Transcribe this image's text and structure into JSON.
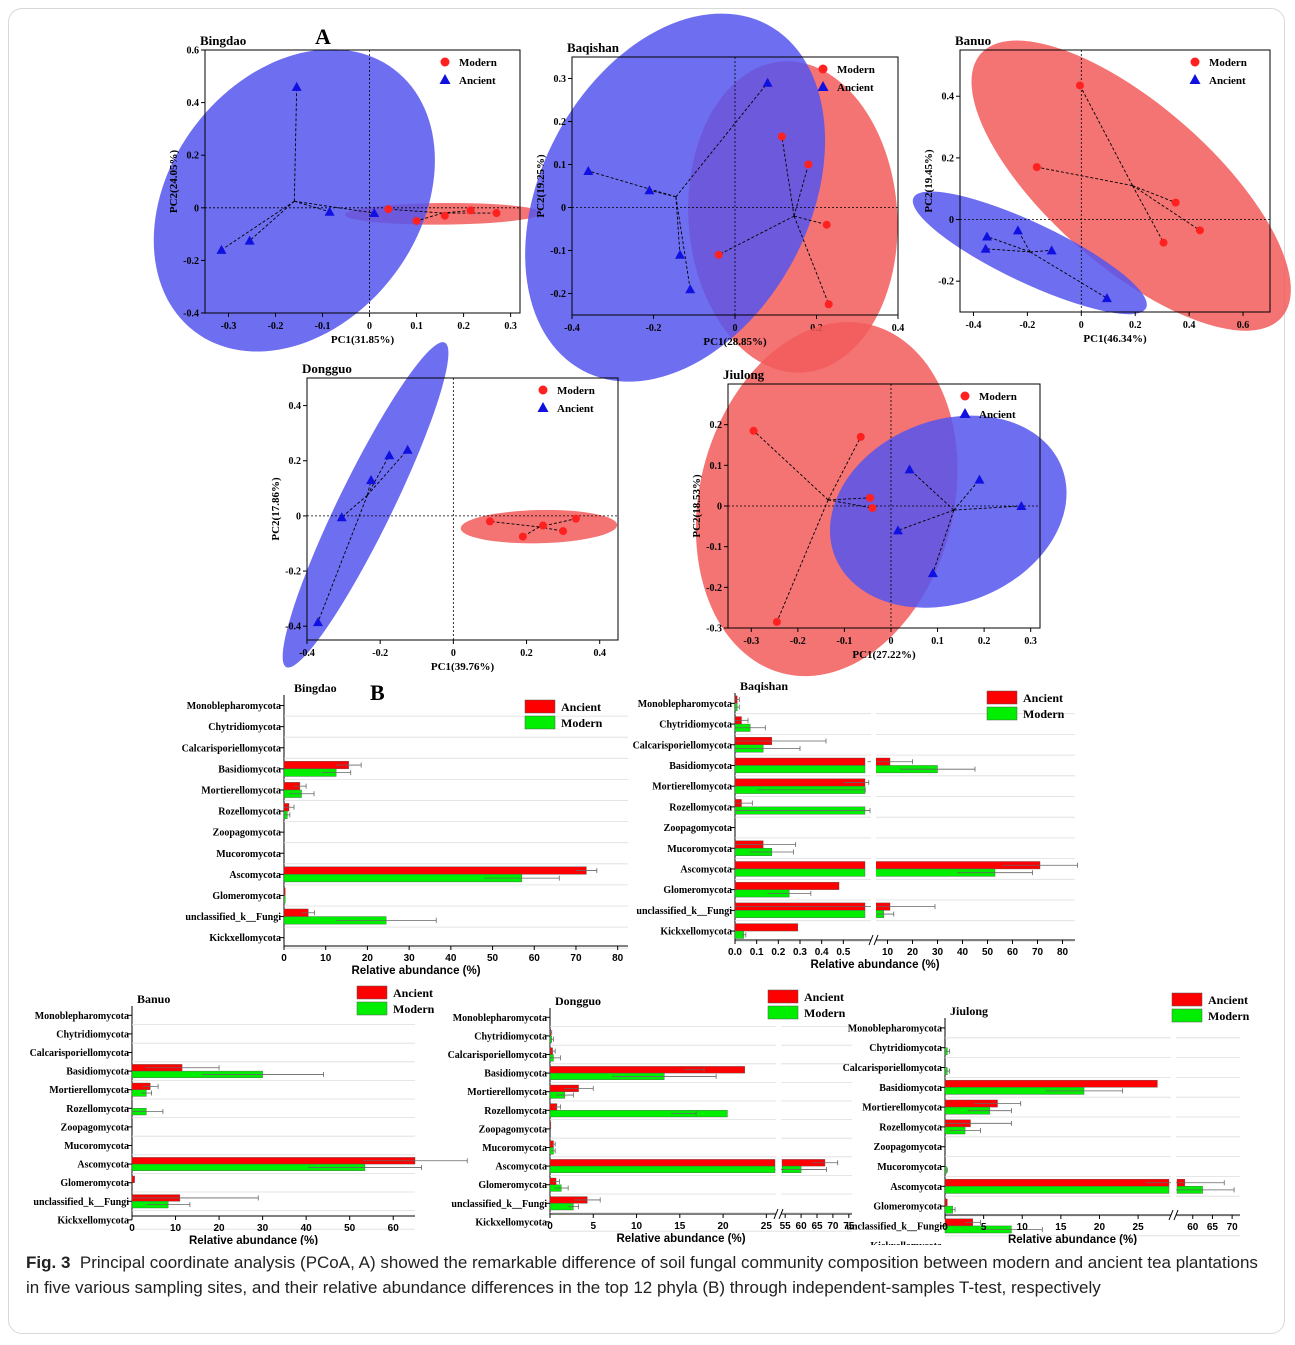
{
  "figure": {
    "label_a": "A",
    "label_b": "B",
    "caption_label": "Fig. 3",
    "caption_text": "Principal coordinate analysis (PCoA, A) showed the remarkable difference of soil fungal community composition between modern and ancient tea plantations in five various sampling sites, and their relative abundance differences in the top 12 phyla (B) through independent-samples T-test, respectively"
  },
  "colors": {
    "modern": "#ff2020",
    "ancient": "#1010e0",
    "modern_fill": "#f25a5a",
    "ancient_fill": "#5555ee",
    "bar_ancient": "#ff0000",
    "bar_modern": "#00ee00"
  },
  "phyla": [
    "Monoblepharomycota",
    "Chytridiomycota",
    "Calcarisporiellomycota",
    "Basidiomycota",
    "Mortierellomycota",
    "Rozellomycota",
    "Zoopagomycota",
    "Mucoromycota",
    "Ascomycota",
    "Glomeromycota",
    "unclassified_k__Fungi",
    "Kickxellomycota"
  ],
  "chart_data": [
    {
      "type": "scatter",
      "title": "Bingdao",
      "xlabel": "PC1(31.85%)",
      "ylabel": "PC2(24.05%)",
      "xlim": [
        -0.35,
        0.32
      ],
      "ylim": [
        -0.4,
        0.6
      ],
      "xticks": [
        "-0.3",
        "-0.2",
        "-0.1",
        "0",
        "0.1",
        "0.2",
        "0.3"
      ],
      "yticks": [
        "-0.4",
        "-0.2",
        "0",
        "0.2",
        "0.4",
        "0.6"
      ],
      "legend": [
        "Modern",
        "Ancient"
      ],
      "series": [
        {
          "name": "Modern",
          "points": [
            [
              0.04,
              -0.005
            ],
            [
              0.1,
              -0.05
            ],
            [
              0.16,
              -0.03
            ],
            [
              0.215,
              -0.01
            ],
            [
              0.27,
              -0.02
            ]
          ],
          "centroid": [
            0.155,
            -0.02
          ]
        },
        {
          "name": "Ancient",
          "points": [
            [
              -0.155,
              0.46
            ],
            [
              -0.315,
              -0.16
            ],
            [
              -0.255,
              -0.125
            ],
            [
              -0.085,
              -0.015
            ],
            [
              0.01,
              -0.02
            ]
          ],
          "centroid": [
            -0.16,
            0.025
          ]
        }
      ]
    },
    {
      "type": "scatter",
      "title": "Baqishan",
      "xlabel": "PC1(28.85%)",
      "ylabel": "PC2(19.25%)",
      "xlim": [
        -0.4,
        0.4
      ],
      "ylim": [
        -0.25,
        0.35
      ],
      "xticks": [
        "-0.4",
        "-0.2",
        "0",
        "0.2",
        "0.4"
      ],
      "yticks": [
        "-0.2",
        "-0.1",
        "0",
        "0.1",
        "0.2",
        "0.3"
      ],
      "legend": [
        "Modern",
        "Ancient"
      ],
      "series": [
        {
          "name": "Modern",
          "points": [
            [
              0.115,
              0.165
            ],
            [
              0.18,
              0.1
            ],
            [
              0.225,
              -0.04
            ],
            [
              0.23,
              -0.225
            ],
            [
              -0.04,
              -0.11
            ]
          ],
          "centroid": [
            0.145,
            -0.02
          ]
        },
        {
          "name": "Ancient",
          "points": [
            [
              0.08,
              0.29
            ],
            [
              -0.36,
              0.085
            ],
            [
              -0.21,
              0.04
            ],
            [
              -0.135,
              -0.11
            ],
            [
              -0.11,
              -0.19
            ]
          ],
          "centroid": [
            -0.145,
            0.025
          ]
        }
      ]
    },
    {
      "type": "scatter",
      "title": "Banuo",
      "xlabel": "PC1(46.34%)",
      "ylabel": "PC2(19.45%)",
      "xlim": [
        -0.45,
        0.7
      ],
      "ylim": [
        -0.3,
        0.55
      ],
      "xticks": [
        "-0.4",
        "-0.2",
        "0",
        "0.2",
        "0.4",
        "0.6"
      ],
      "yticks": [
        "-0.2",
        "0",
        "0.2",
        "0.4"
      ],
      "legend": [
        "Modern",
        "Ancient"
      ],
      "series": [
        {
          "name": "Modern",
          "points": [
            [
              -0.005,
              0.435
            ],
            [
              -0.165,
              0.17
            ],
            [
              0.305,
              -0.075
            ],
            [
              0.35,
              0.055
            ],
            [
              0.44,
              -0.035
            ]
          ],
          "centroid": [
            0.19,
            0.11
          ]
        },
        {
          "name": "Ancient",
          "points": [
            [
              -0.35,
              -0.055
            ],
            [
              -0.355,
              -0.095
            ],
            [
              -0.235,
              -0.035
            ],
            [
              -0.11,
              -0.1
            ],
            [
              0.095,
              -0.255
            ]
          ],
          "centroid": [
            -0.19,
            -0.105
          ]
        }
      ]
    },
    {
      "type": "scatter",
      "title": "Dongguo",
      "xlabel": "PC1(39.76%)",
      "ylabel": "PC2(17.86%)",
      "xlim": [
        -0.4,
        0.45
      ],
      "ylim": [
        -0.45,
        0.5
      ],
      "xticks": [
        "-0.4",
        "-0.2",
        "0",
        "0.2",
        "0.4"
      ],
      "yticks": [
        "-0.4",
        "-0.2",
        "0",
        "0.2",
        "0.4"
      ],
      "legend": [
        "Modern",
        "Ancient"
      ],
      "series": [
        {
          "name": "Modern",
          "points": [
            [
              0.1,
              -0.02
            ],
            [
              0.19,
              -0.075
            ],
            [
              0.245,
              -0.035
            ],
            [
              0.3,
              -0.055
            ],
            [
              0.335,
              -0.01
            ]
          ],
          "centroid": [
            0.235,
            -0.04
          ]
        },
        {
          "name": "Ancient",
          "points": [
            [
              -0.125,
              0.24
            ],
            [
              -0.175,
              0.22
            ],
            [
              -0.225,
              0.13
            ],
            [
              -0.305,
              -0.005
            ],
            [
              -0.37,
              -0.385
            ]
          ],
          "centroid": [
            -0.235,
            0.075
          ]
        }
      ]
    },
    {
      "type": "scatter",
      "title": "Jiulong",
      "xlabel": "PC1(27.22%)",
      "ylabel": "PC2(18.53%)",
      "xlim": [
        -0.35,
        0.32
      ],
      "ylim": [
        -0.3,
        0.3
      ],
      "xticks": [
        "-0.3",
        "-0.2",
        "-0.1",
        "0",
        "0.1",
        "0.2",
        "0.3"
      ],
      "yticks": [
        "-0.3",
        "-0.2",
        "-0.1",
        "0",
        "0.1",
        "0.2"
      ],
      "legend": [
        "Modern",
        "Ancient"
      ],
      "series": [
        {
          "name": "Modern",
          "points": [
            [
              -0.295,
              0.185
            ],
            [
              -0.065,
              0.17
            ],
            [
              -0.045,
              0.02
            ],
            [
              -0.04,
              -0.005
            ],
            [
              -0.245,
              -0.285
            ]
          ],
          "centroid": [
            -0.135,
            0.015
          ]
        },
        {
          "name": "Ancient",
          "points": [
            [
              0.04,
              0.09
            ],
            [
              0.19,
              0.065
            ],
            [
              0.28,
              0.0
            ],
            [
              0.015,
              -0.06
            ],
            [
              0.09,
              -0.165
            ]
          ],
          "centroid": [
            0.135,
            -0.01
          ]
        }
      ]
    },
    {
      "type": "bar",
      "title": "Bingdao",
      "xlabel": "Relative abundance (%)",
      "xticks": [
        "0",
        "10",
        "20",
        "30",
        "40",
        "50",
        "60",
        "70",
        "80"
      ],
      "legend": [
        "Ancient",
        "Modern"
      ],
      "categories": [
        "Monoblepharomycota",
        "Chytridiomycota",
        "Calcarisporiellomycota",
        "Basidiomycota",
        "Mortierellomycota",
        "Rozellomycota",
        "Zoopagomycota",
        "Mucoromycota",
        "Ascomycota",
        "Glomeromycota",
        "unclassified_k__Fungi",
        "Kickxellomycota"
      ],
      "series": [
        {
          "name": "Ancient",
          "values": [
            0,
            0,
            0,
            15.5,
            3.8,
            1.2,
            0,
            0,
            72.5,
            0.3,
            5.8,
            0
          ],
          "err": [
            0,
            0,
            0,
            3,
            1.5,
            1.2,
            0,
            0,
            2.5,
            0,
            1.5,
            0
          ]
        },
        {
          "name": "Modern",
          "values": [
            0,
            0,
            0,
            12.5,
            4.2,
            0.8,
            0,
            0,
            57,
            0.3,
            24.5,
            0
          ],
          "err": [
            0,
            0,
            0,
            3.5,
            3,
            0.6,
            0,
            0,
            9,
            0,
            12,
            0
          ]
        }
      ]
    },
    {
      "type": "bar",
      "title": "Baqishan",
      "xlabel": "Relative abundance (%)",
      "xticks": [
        "0.0",
        "0.1",
        "0.2",
        "0.3",
        "0.4",
        "0.5",
        "10",
        "20",
        "30",
        "40",
        "50",
        "60",
        "70",
        "80"
      ],
      "legend": [
        "Ancient",
        "Modern"
      ],
      "axis_break": [
        0.6,
        5
      ],
      "categories": [
        "Monoblepharomycota",
        "Chytridiomycota",
        "Calcarisporiellomycota",
        "Basidiomycota",
        "Mortierellomycota",
        "Rozellomycota",
        "Zoopagomycota",
        "Mucoromycota",
        "Ascomycota",
        "Glomeromycota",
        "unclassified_k__Fungi",
        "Kickxellomycota"
      ],
      "series": [
        {
          "name": "Ancient",
          "values": [
            0.01,
            0.03,
            0.17,
            11,
            1.5,
            0.03,
            0,
            0.13,
            71,
            0.48,
            11,
            0.29
          ],
          "err": [
            0.01,
            0.03,
            0.25,
            9,
            1,
            0.05,
            0,
            0.15,
            15,
            0,
            18,
            0
          ]
        },
        {
          "name": "Modern",
          "values": [
            0.01,
            0.07,
            0.13,
            30,
            0.6,
            1.5,
            0,
            0.17,
            53,
            0.25,
            8.5,
            0.04
          ],
          "err": [
            0.01,
            0.07,
            0.17,
            15,
            0.5,
            1.5,
            0,
            0.1,
            15,
            0.1,
            4,
            0.01
          ]
        }
      ]
    },
    {
      "type": "bar",
      "title": "Banuo",
      "xlabel": "Relative abundance (%)",
      "xticks": [
        "0",
        "10",
        "20",
        "30",
        "40",
        "50",
        "60"
      ],
      "legend": [
        "Ancient",
        "Modern"
      ],
      "categories": [
        "Monoblepharomycota",
        "Chytridiomycota",
        "Calcarisporiellomycota",
        "Basidiomycota",
        "Mortierellomycota",
        "Rozellomycota",
        "Zoopagomycota",
        "Mucoromycota",
        "Ascomycota",
        "Glomeromycota",
        "unclassified_k__Fungi",
        "Kickxellomycota"
      ],
      "series": [
        {
          "name": "Ancient",
          "values": [
            0,
            0,
            0,
            11.5,
            4.2,
            0,
            0,
            0,
            65,
            0.6,
            11,
            0
          ],
          "err": [
            0,
            0,
            0,
            8.5,
            1.8,
            0,
            0,
            0,
            12,
            0,
            18,
            0
          ]
        },
        {
          "name": "Modern",
          "values": [
            0,
            0,
            0,
            30,
            3.3,
            3.3,
            0,
            0,
            53.5,
            0,
            8.3,
            0
          ],
          "err": [
            0,
            0,
            0,
            14,
            1.2,
            3.8,
            0,
            0,
            13,
            0,
            5,
            0
          ]
        }
      ]
    },
    {
      "type": "bar",
      "title": "Dongguo",
      "xlabel": "Relative abundance (%)",
      "xticks": [
        "0",
        "5",
        "10",
        "15",
        "20",
        "25",
        "55",
        "60",
        "65",
        "70",
        "75"
      ],
      "legend": [
        "Ancient",
        "Modern"
      ],
      "axis_break": [
        26,
        54
      ],
      "categories": [
        "Monoblepharomycota",
        "Chytridiomycota",
        "Calcarisporiellomycota",
        "Basidiomycota",
        "Mortierellomycota",
        "Rozellomycota",
        "Zoopagomycota",
        "Mucoromycota",
        "Ascomycota",
        "Glomeromycota",
        "unclassified_k__Fungi",
        "Kickxellomycota"
      ],
      "series": [
        {
          "name": "Ancient",
          "values": [
            0,
            0.1,
            0.3,
            22.5,
            3.3,
            0.8,
            0.1,
            0.4,
            67.5,
            0.7,
            4.3,
            0
          ],
          "err": [
            0,
            0.1,
            0.3,
            7,
            1.7,
            0.4,
            0,
            0.2,
            4,
            0.4,
            1.5,
            0
          ]
        },
        {
          "name": "Modern",
          "values": [
            0,
            0.2,
            0.4,
            13.2,
            1.7,
            20.5,
            0,
            0.4,
            60,
            1.3,
            2.7,
            0
          ],
          "err": [
            0,
            0.2,
            0.8,
            6,
            1,
            6.5,
            0,
            0.2,
            8,
            0.8,
            0.6,
            0
          ]
        }
      ]
    },
    {
      "type": "bar",
      "title": "Jiulong",
      "xlabel": "Relative abundance (%)",
      "xticks": [
        "0",
        "5",
        "10",
        "15",
        "20",
        "25",
        "60",
        "65",
        "70"
      ],
      "legend": [
        "Ancient",
        "Modern"
      ],
      "axis_break": [
        29,
        56
      ],
      "categories": [
        "Monoblepharomycota",
        "Chytridiomycota",
        "Calcarisporiellomycota",
        "Basidiomycota",
        "Mortierellomycota",
        "Rozellomycota",
        "Zoopagomycota",
        "Mucoromycota",
        "Ascomycota",
        "Glomeromycota",
        "unclassified_k__Fungi",
        "Kickxellomycota"
      ],
      "series": [
        {
          "name": "Ancient",
          "values": [
            0,
            0,
            0,
            27.5,
            6.8,
            3.3,
            0,
            0,
            58,
            0.3,
            3.6,
            0
          ],
          "err": [
            0,
            0,
            0,
            0,
            3,
            5.3,
            0,
            0,
            10,
            0,
            1,
            0
          ]
        },
        {
          "name": "Modern",
          "values": [
            0,
            0.3,
            0.3,
            18,
            5.8,
            2.6,
            0,
            0.2,
            62.5,
            1,
            8.6,
            0.1
          ],
          "err": [
            0,
            0.3,
            0.3,
            5,
            2.8,
            2,
            0,
            0.1,
            8,
            0.3,
            4,
            0.1
          ]
        }
      ]
    }
  ]
}
